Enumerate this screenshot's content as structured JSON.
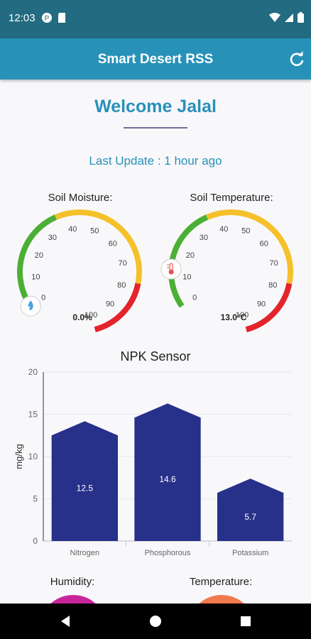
{
  "status": {
    "time": "12:03"
  },
  "app": {
    "title": "Smart Desert RSS",
    "refresh_icon": "refresh-icon"
  },
  "welcome": "Welcome Jalal",
  "last_update": "Last Update : 1 hour ago",
  "gauges": [
    {
      "label": "Soil Moisture:",
      "value_text": "0.0%",
      "value": 0,
      "ticks": [
        "0",
        "10",
        "20",
        "30",
        "40",
        "50",
        "60",
        "70",
        "80",
        "90",
        "100"
      ],
      "icon": "water-drop-icon"
    },
    {
      "label": "Soil Temperature:",
      "value_text": "13.0°C",
      "value": 13,
      "ticks": [
        "0",
        "10",
        "20",
        "30",
        "40",
        "50",
        "60",
        "70",
        "80",
        "90",
        "100"
      ],
      "icon": "thermometer-icon"
    }
  ],
  "colors": {
    "green": "#4caf35",
    "yellow": "#f5c12a",
    "red": "#e3242b",
    "bar": "#27318a",
    "primary": "#2891b8"
  },
  "chart_data": {
    "type": "bar",
    "title": "NPK Sensor",
    "categories": [
      "Nitrogen",
      "Phosphorous",
      "Potassium"
    ],
    "values": [
      12.5,
      14.6,
      5.7
    ],
    "value_labels": [
      "12.5",
      "14.6",
      "5.7"
    ],
    "ylabel": "mg/kg",
    "xlabel": "",
    "ylim": [
      0,
      20
    ],
    "yticks": [
      "0",
      "5",
      "10",
      "15",
      "20"
    ],
    "grid": true
  },
  "bottom": {
    "humidity": "Humidity:",
    "temperature": "Temperature:"
  }
}
